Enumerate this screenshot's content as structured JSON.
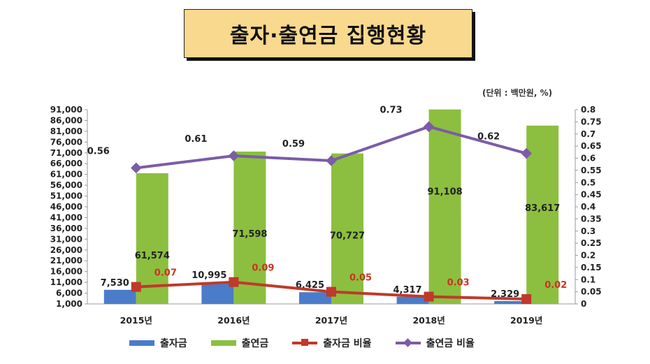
{
  "title": "출자·출연금 집행현황",
  "unit_note": "(단위 : 백만원, %)",
  "colors": {
    "investment_bar": "#4a7cc9",
    "contribution_bar": "#8cbf3f",
    "investment_line": "#c0392b",
    "contribution_line": "#7b5ca8"
  },
  "chart_data": {
    "type": "bar",
    "categories": [
      "2015년",
      "2016년",
      "2017년",
      "2018년",
      "2019년"
    ],
    "series": [
      {
        "name": "출자금",
        "axis": "left",
        "values": [
          7530,
          10995,
          6425,
          4317,
          2329
        ],
        "labels": [
          "7,530",
          "10,995",
          "6,425",
          "4,317",
          "2,329"
        ]
      },
      {
        "name": "출연금",
        "axis": "left",
        "values": [
          61574,
          71598,
          70727,
          91108,
          83617
        ],
        "labels": [
          "61,574",
          "71,598",
          "70,727",
          "91,108",
          "83,617"
        ]
      },
      {
        "name": "출자금 비율",
        "type": "line",
        "axis": "right",
        "values": [
          0.07,
          0.09,
          0.05,
          0.03,
          0.02
        ],
        "labels": [
          "0.07",
          "0.09",
          "0.05",
          "0.03",
          "0.02"
        ]
      },
      {
        "name": "출연금 비율",
        "type": "line",
        "axis": "right",
        "values": [
          0.56,
          0.61,
          0.59,
          0.73,
          0.62
        ],
        "labels": [
          "0.56",
          "0.61",
          "0.59",
          "0.73",
          "0.62"
        ]
      }
    ],
    "y_left": {
      "range": [
        1000,
        91000
      ],
      "ticks": [
        1000,
        6000,
        11000,
        16000,
        21000,
        26000,
        31000,
        36000,
        41000,
        46000,
        51000,
        56000,
        61000,
        66000,
        71000,
        76000,
        81000,
        86000,
        91000
      ],
      "tick_labels": [
        "1,000",
        "6,000",
        "11,000",
        "16,000",
        "21,000",
        "26,000",
        "31,000",
        "36,000",
        "41,000",
        "46,000",
        "51,000",
        "56,000",
        "61,000",
        "66,000",
        "71,000",
        "76,000",
        "81,000",
        "86,000",
        "91,000"
      ]
    },
    "y_right": {
      "range": [
        0,
        0.8
      ],
      "ticks": [
        0,
        0.05,
        0.1,
        0.15,
        0.2,
        0.25,
        0.3,
        0.35,
        0.4,
        0.45,
        0.5,
        0.55,
        0.6,
        0.65,
        0.7,
        0.75,
        0.8
      ],
      "tick_labels": [
        "0",
        "0.05",
        "0.1",
        "0.15",
        "0.2",
        "0.25",
        "0.3",
        "0.35",
        "0.4",
        "0.45",
        "0.5",
        "0.55",
        "0.6",
        "0.65",
        "0.7",
        "0.75",
        "0.8"
      ]
    },
    "legend": [
      "출자금",
      "출연금",
      "출자금 비율",
      "출연금 비율"
    ],
    "legend_position": "bottom"
  }
}
